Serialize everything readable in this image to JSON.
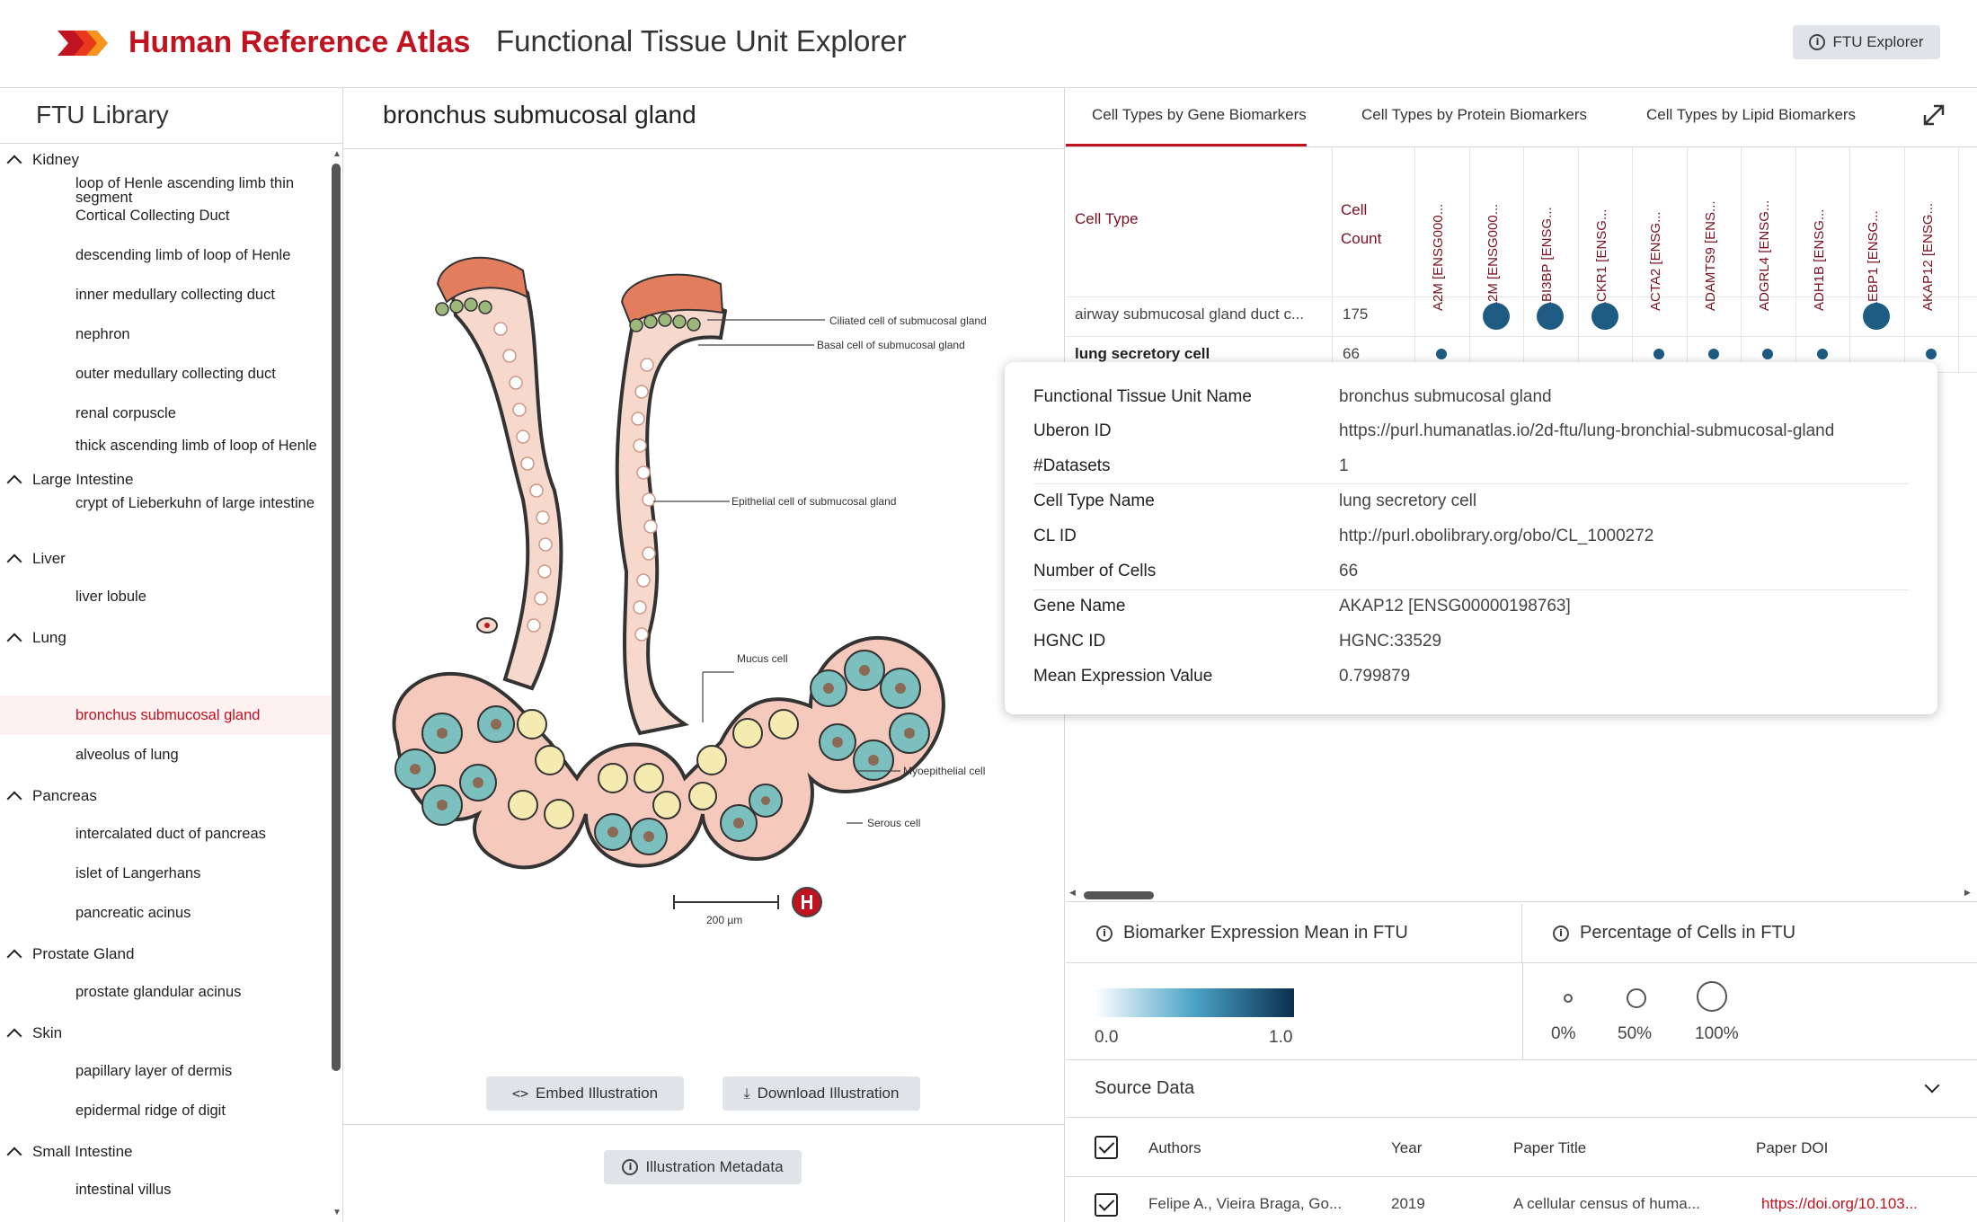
{
  "header": {
    "brand": "Human Reference Atlas",
    "title": "Functional Tissue Unit Explorer",
    "button_label": "FTU Explorer",
    "colors": {
      "brand_red": "#c1121f",
      "logo_orange": "#f15a22"
    }
  },
  "library": {
    "title": "FTU Library",
    "groups": [
      {
        "label": "Kidney",
        "items": [
          "loop of Henle ascending limb thin segment",
          "Cortical Collecting Duct",
          "descending limb of loop of Henle",
          "inner medullary collecting duct",
          "nephron",
          "outer medullary collecting duct",
          "renal corpuscle",
          "thick ascending limb of loop of Henle"
        ]
      },
      {
        "label": "Large Intestine",
        "items": [
          "crypt of Lieberkuhn of large intestine"
        ]
      },
      {
        "label": "Liver",
        "items": [
          "liver lobule"
        ]
      },
      {
        "label": "Lung",
        "items": [
          "bronchus submucosal gland",
          "alveolus of lung"
        ]
      },
      {
        "label": "Pancreas",
        "items": [
          "intercalated duct of pancreas",
          "islet of Langerhans",
          "pancreatic acinus"
        ]
      },
      {
        "label": "Prostate Gland",
        "items": [
          "prostate glandular acinus"
        ]
      },
      {
        "label": "Skin",
        "items": [
          "papillary layer of dermis",
          "epidermal ridge of digit"
        ]
      },
      {
        "label": "Small Intestine",
        "items": [
          "intestinal villus"
        ]
      }
    ],
    "selected": "bronchus submucosal gland"
  },
  "illustration": {
    "title": "bronchus submucosal gland",
    "labels": {
      "ciliated": "Ciliated cell of submucosal gland",
      "basal": "Basal cell of submucosal gland",
      "epithelial": "Epithelial cell of submucosal gland",
      "mucus": "Mucus cell",
      "myoepithelial": "Myoepithelial cell",
      "serous": "Serous cell",
      "scale": "200 µm"
    },
    "embed_label": "Embed Illustration",
    "download_label": "Download Illustration",
    "metadata_label": "Illustration Metadata"
  },
  "biomarkers": {
    "tabs": [
      "Cell Types by Gene Biomarkers",
      "Cell Types by Protein Biomarkers",
      "Cell Types by Lipid Biomarkers"
    ],
    "col_celltype": "Cell Type",
    "col_count": "Cell Count",
    "genes": [
      "A2M [ENSG000...",
      "A2M [ENSG000...",
      "ABI3BP [ENSG...",
      "ACKR1 [ENSG...",
      "ACTA2 [ENSG...",
      "ADAMTS9 [ENS...",
      "ADGRL4 [ENSG...",
      "ADH1B [ENSG...",
      "AEBP1 [ENSG...",
      "AKAP12 [ENSG..."
    ],
    "rows": [
      {
        "cell_type": "airway submucosal gland duct c...",
        "count": "175",
        "dots": [
          0,
          1,
          1,
          1,
          0,
          0,
          0,
          0,
          1,
          0
        ]
      },
      {
        "cell_type": "lung secretory cell",
        "count": "66",
        "dots": [
          0.3,
          0,
          0,
          0,
          0.3,
          0.3,
          0.3,
          0.3,
          0,
          0.3
        ]
      }
    ]
  },
  "tooltip": {
    "rows": [
      {
        "k": "Functional Tissue Unit Name",
        "v": "bronchus submucosal gland"
      },
      {
        "k": "Uberon ID",
        "v": "https://purl.humanatlas.io/2d-ftu/lung-bronchial-submucosal-gland"
      },
      {
        "k": "#Datasets",
        "v": "1"
      },
      {
        "k": "Cell Type Name",
        "v": "lung secretory cell"
      },
      {
        "k": "CL ID",
        "v": "http://purl.obolibrary.org/obo/CL_1000272"
      },
      {
        "k": "Number of Cells",
        "v": "66"
      },
      {
        "k": "Gene Name",
        "v": "AKAP12 [ENSG00000198763]"
      },
      {
        "k": "HGNC ID",
        "v": "HGNC:33529"
      },
      {
        "k": "Mean Expression Value",
        "v": "0.799879"
      }
    ]
  },
  "legend": {
    "expression_title": "Biomarker Expression Mean in FTU",
    "expression_min": "0.0",
    "expression_max": "1.0",
    "percentage_title": "Percentage of Cells in FTU",
    "percentages": [
      "0%",
      "50%",
      "100%"
    ]
  },
  "source": {
    "title": "Source Data",
    "columns": [
      "Authors",
      "Year",
      "Paper Title",
      "Paper DOI"
    ],
    "row": {
      "authors": "Felipe A., Vieira Braga, Go...",
      "year": "2019",
      "title": "A cellular census of huma...",
      "doi": "https://doi.org/10.103..."
    }
  }
}
